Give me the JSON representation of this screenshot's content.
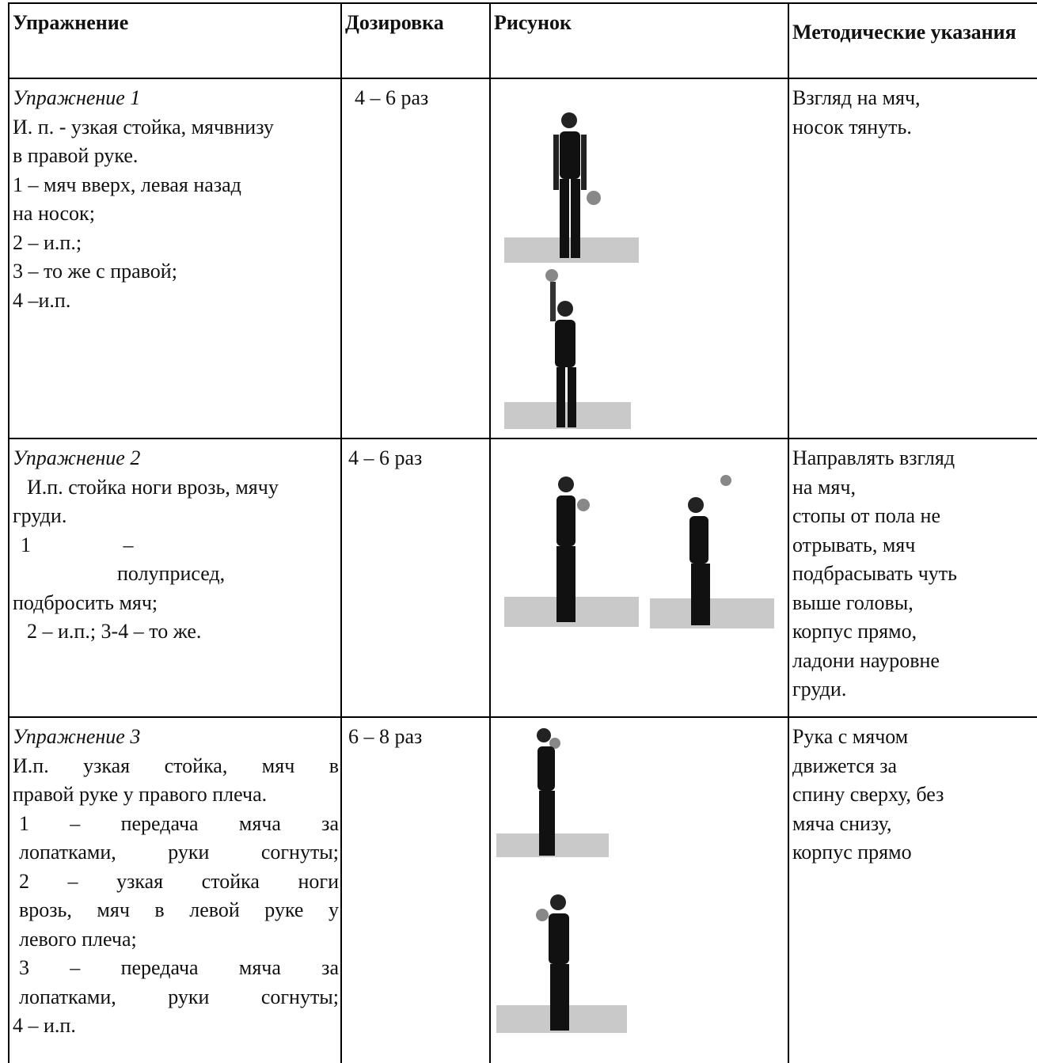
{
  "table": {
    "header": [
      "Упражнение",
      "Дозировка",
      "Рисунок",
      "Методические указания"
    ],
    "rows": [
      {
        "title": "Упражнение 1",
        "lines": [
          "И. п. - узкая стойка, мячвнизу",
          "в правой руке.",
          "1 – мяч вверх, левая назад",
          "на носок;",
          "2 – и.п.;",
          "3 – то же с правой;",
          "4 –и.п."
        ],
        "dosage": "4 – 6 раз",
        "notes": [
          "Взгляд на мяч,",
          "носок тянуть."
        ]
      },
      {
        "title": "Упражнение 2",
        "lines": [
          "И.п. стойка ноги врозь, мячу",
          "груди.",
          "1 –",
          "полуприсед,",
          "подбросить мяч;",
          "2 – и.п.; 3-4 – то же."
        ],
        "dosage": "4 – 6 раз",
        "notes": [
          "Направлять взгляд",
          "на мяч,",
          "стопы от пола не",
          "отрывать, мяч",
          "подбрасывать чуть",
          "выше головы,",
          "корпус прямо,",
          "ладони науровне",
          "груди."
        ]
      },
      {
        "title": "Упражнение 3",
        "lines": [
          "И.п. узкая стойка, мяч в",
          "правой руке у правого плеча.",
          "1 – передача мяча за",
          "лопатками, руки согнуты;",
          "2 – узкая стойка ноги",
          "врозь, мяч в левой руке у",
          "левого плеча;",
          "3 – передача мяча за",
          "лопатками, руки согнуты;",
          "4 – и.п."
        ],
        "dosage": "6 – 8 раз",
        "notes": [
          "Рука с мячом",
          "движется за",
          "спину сверху, без",
          "мяча снизу,",
          "корпус прямо"
        ]
      }
    ]
  }
}
